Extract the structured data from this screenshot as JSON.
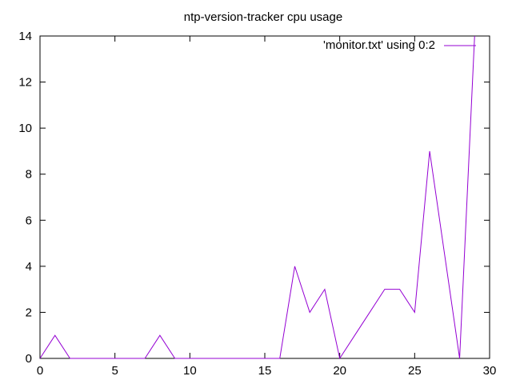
{
  "chart_data": {
    "type": "line",
    "title": "ntp-version-tracker cpu usage",
    "xlabel": "",
    "ylabel": "",
    "xlim": [
      0,
      30
    ],
    "ylim": [
      0,
      14
    ],
    "x_ticks": [
      0,
      5,
      10,
      15,
      20,
      25,
      30
    ],
    "y_ticks": [
      0,
      2,
      4,
      6,
      8,
      10,
      12,
      14
    ],
    "grid": false,
    "legend_position": "top-right",
    "series": [
      {
        "name": "'monitor.txt' using 0:2",
        "color": "#9400d3",
        "x": [
          0,
          1,
          2,
          3,
          4,
          5,
          6,
          7,
          8,
          9,
          10,
          11,
          12,
          13,
          14,
          15,
          16,
          17,
          18,
          19,
          20,
          21,
          22,
          23,
          24,
          25,
          26,
          27,
          28,
          29
        ],
        "y": [
          0,
          1,
          0,
          0,
          0,
          0,
          0,
          0,
          1,
          0,
          0,
          0,
          0,
          0,
          0,
          0,
          0,
          4,
          2,
          3,
          0,
          1,
          2,
          3,
          3,
          2,
          9,
          4.5,
          0,
          14
        ]
      }
    ]
  }
}
